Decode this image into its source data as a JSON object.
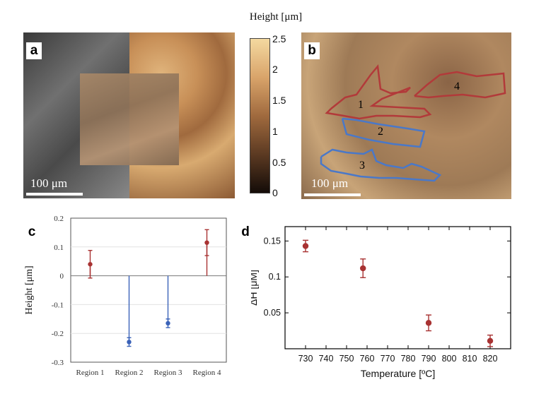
{
  "colorbar": {
    "title": "Height [μm]",
    "ticks": [
      "2.5",
      "2",
      "1.5",
      "1",
      "0.5",
      "0"
    ],
    "colors": [
      "#f4d9a0",
      "#d9a46a",
      "#a06a3e",
      "#5c3a22",
      "#140c08"
    ]
  },
  "panel_a": {
    "letter": "a",
    "scale_label": "100 μm"
  },
  "panel_b": {
    "letter": "b",
    "scale_label": "100 μm",
    "regions": [
      {
        "label": "1",
        "color": "#b23a3a"
      },
      {
        "label": "2",
        "color": "#4a78c8"
      },
      {
        "label": "3",
        "color": "#4a78c8"
      },
      {
        "label": "4",
        "color": "#b23a3a"
      }
    ]
  },
  "chart_data": [
    {
      "panel": "c",
      "type": "scatter",
      "title": "",
      "xlabel": "",
      "ylabel": "Height [μm]",
      "categories": [
        "Region 1",
        "Region 2",
        "Region 3",
        "Region 4"
      ],
      "values": [
        0.04,
        -0.23,
        -0.165,
        0.115
      ],
      "errors": [
        0.048,
        0.015,
        0.015,
        0.045
      ],
      "colors": [
        "#a83232",
        "#3a62b8",
        "#3a62b8",
        "#a83232"
      ],
      "ylim": [
        -0.3,
        0.2
      ],
      "yticks": [
        "0.2",
        "0.1",
        "0",
        "-0.1",
        "-0.2",
        "-0.3"
      ],
      "grid": true
    },
    {
      "panel": "d",
      "type": "scatter",
      "title": "",
      "xlabel": "Temperature [ºC]",
      "ylabel": "ΔH [μM]",
      "x": [
        730,
        758,
        790,
        820
      ],
      "values": [
        0.143,
        0.112,
        0.036,
        0.011
      ],
      "errors": [
        0.008,
        0.013,
        0.011,
        0.008
      ],
      "color": "#a83232",
      "xlim": [
        720,
        830
      ],
      "ylim": [
        0,
        0.17
      ],
      "xticks": [
        "730",
        "740",
        "750",
        "760",
        "770",
        "780",
        "790",
        "800",
        "810",
        "820"
      ],
      "yticks": [
        "0.15",
        "0.1",
        "0.05"
      ]
    }
  ]
}
